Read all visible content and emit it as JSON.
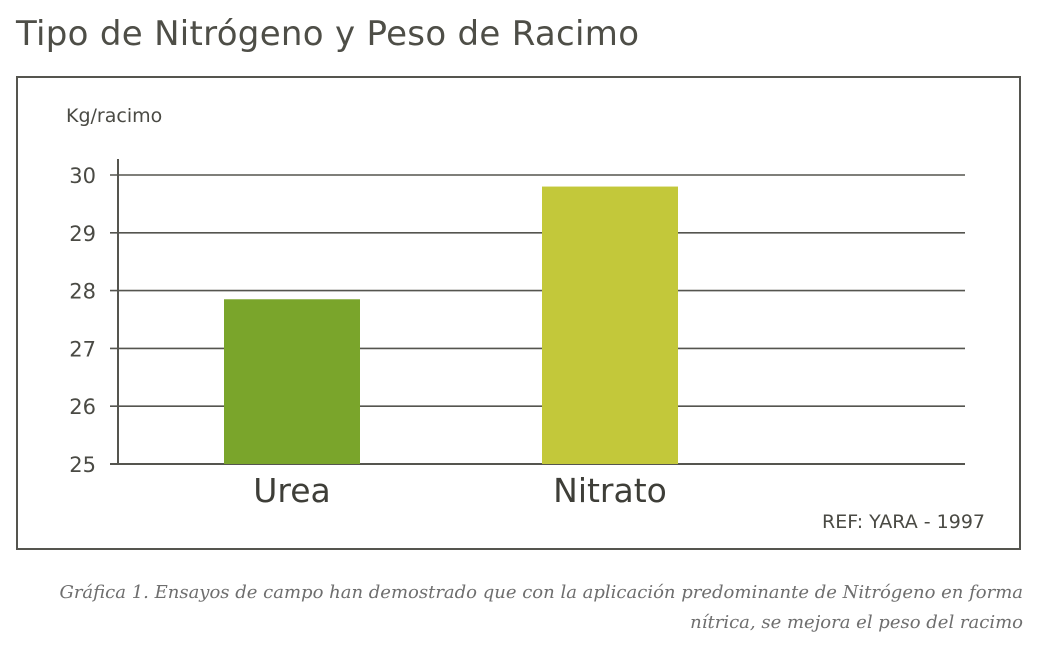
{
  "title": "Tipo de Nitrógeno y Peso de Racimo",
  "reference": "REF: YARA - 1997",
  "caption_lines": [
    "Gráfica 1. Ensayos de campo han demostrado que con la aplicación predominante de Nitrógeno en forma",
    "nítrica, se mejora el peso del racimo"
  ],
  "chart_data": {
    "type": "bar",
    "title": "Tipo de Nitrógeno y Peso de Racimo",
    "xlabel": "",
    "ylabel": "Kg/racimo",
    "categories": [
      "Urea",
      "Nitrato"
    ],
    "values": [
      27.85,
      29.8
    ],
    "bar_colors": [
      "#7aa52b",
      "#c3c83a"
    ],
    "ylim": [
      25,
      30
    ],
    "yticks": [
      25,
      26,
      27,
      28,
      29,
      30
    ],
    "grid": true,
    "legend": "none"
  }
}
